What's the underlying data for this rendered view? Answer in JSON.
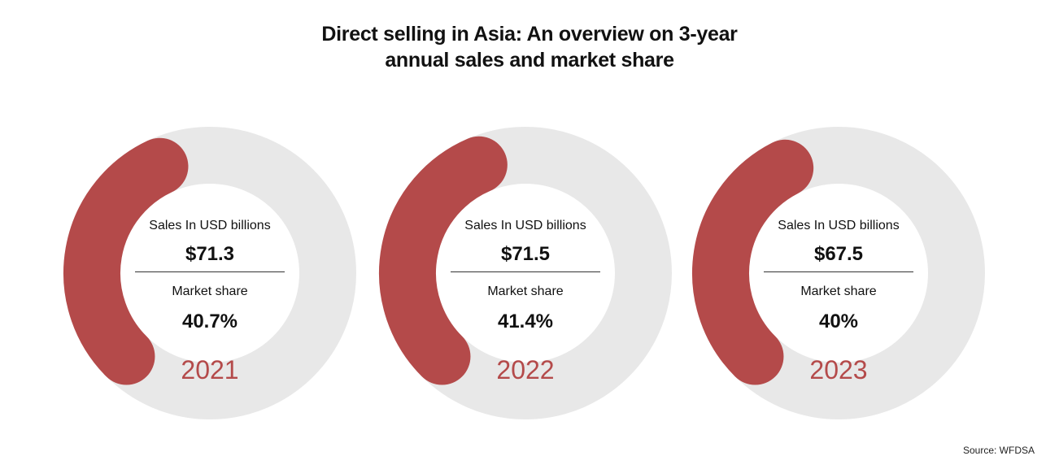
{
  "title_lines": [
    "Direct selling in Asia: An overview on 3-year",
    "annual sales and market share"
  ],
  "source": "Source: WFDSA",
  "colors": {
    "accent": "#b44a4a",
    "track": "#e8e8e8",
    "year": "#b44a4a"
  },
  "chart_data": {
    "type": "gauge",
    "title": "Direct selling in Asia: An overview on 3-year annual sales and market share",
    "sales_label": "Sales In USD billions",
    "share_label": "Market share",
    "gauges": [
      {
        "year": "2021",
        "sales": "$71.3",
        "sales_value": 71.3,
        "share": "40.7%",
        "share_value": 40.7
      },
      {
        "year": "2022",
        "sales": "$71.5",
        "sales_value": 71.5,
        "share": "41.4%",
        "share_value": 41.4
      },
      {
        "year": "2023",
        "sales": "$67.5",
        "sales_value": 67.5,
        "share": "40%",
        "share_value": 40
      }
    ]
  }
}
